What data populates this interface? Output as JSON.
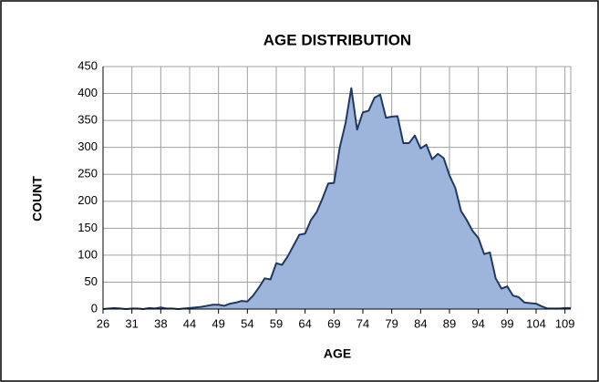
{
  "chart_data": {
    "type": "area",
    "title": "AGE DISTRIBUTION",
    "x_label": "AGE",
    "y_label": "COUNT",
    "categories": [
      "26",
      null,
      null,
      null,
      null,
      "31",
      null,
      null,
      null,
      null,
      "38",
      null,
      null,
      null,
      null,
      "44",
      null,
      null,
      null,
      null,
      "49",
      null,
      null,
      null,
      null,
      "54",
      null,
      null,
      null,
      null,
      "59",
      null,
      null,
      null,
      null,
      "64",
      null,
      null,
      null,
      null,
      "69",
      null,
      null,
      null,
      null,
      "74",
      null,
      null,
      null,
      null,
      "79",
      null,
      null,
      null,
      null,
      "84",
      null,
      null,
      null,
      null,
      "89",
      null,
      null,
      null,
      null,
      "94",
      null,
      null,
      null,
      null,
      "99",
      null,
      null,
      null,
      null,
      "104",
      null,
      null,
      null,
      null,
      "109",
      null
    ],
    "values": [
      0,
      1,
      2,
      1,
      0,
      1,
      1,
      0,
      2,
      1,
      3,
      1,
      1,
      0,
      1,
      2,
      3,
      4,
      6,
      8,
      8,
      6,
      10,
      12,
      15,
      14,
      25,
      40,
      57,
      55,
      85,
      82,
      98,
      118,
      138,
      140,
      165,
      180,
      205,
      233,
      234,
      300,
      345,
      410,
      333,
      365,
      368,
      392,
      398,
      355,
      357,
      358,
      308,
      308,
      322,
      298,
      305,
      278,
      288,
      280,
      248,
      225,
      182,
      165,
      145,
      132,
      102,
      105,
      57,
      38,
      42,
      25,
      22,
      12,
      11,
      10,
      5,
      1,
      1,
      1,
      2,
      2
    ],
    "color": "#9db5db",
    "line_color": "#1f3864",
    "ylim": [
      0,
      450
    ],
    "yticks": [
      0,
      50,
      100,
      150,
      200,
      250,
      300,
      350,
      400,
      450
    ],
    "grid": true
  }
}
